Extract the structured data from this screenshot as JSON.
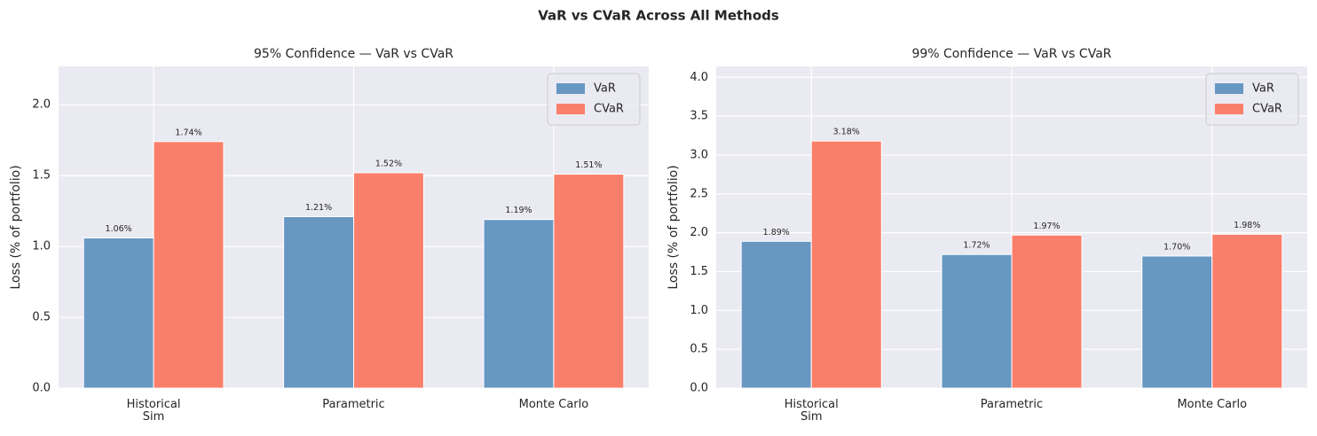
{
  "title": "VaR vs CVaR Across All Methods",
  "chart_data": [
    {
      "type": "bar",
      "title": "95% Confidence — VaR vs CVaR",
      "ylabel": "Loss (% of portfolio)",
      "categories": [
        "Historical\nSim",
        "Parametric",
        "Monte Carlo"
      ],
      "series": [
        {
          "name": "VaR",
          "color": "#6897c2",
          "values": [
            1.06,
            1.21,
            1.19
          ],
          "value_labels": [
            "1.06%",
            "1.21%",
            "1.19%"
          ]
        },
        {
          "name": "CVaR",
          "color": "#fa7f6a",
          "values": [
            1.74,
            1.52,
            1.51
          ],
          "value_labels": [
            "1.74%",
            "1.52%",
            "1.51%"
          ]
        }
      ],
      "ylim": [
        0,
        2.27
      ],
      "yticks": [
        {
          "value": 0,
          "label": "0.0"
        },
        0.5,
        {
          "value": 1,
          "label": "1.0"
        },
        1.5,
        {
          "value": 2,
          "label": "2.0"
        }
      ],
      "grid": true,
      "legend": "upper right"
    },
    {
      "type": "bar",
      "title": "99% Confidence — VaR vs CVaR",
      "ylabel": "Loss (% of portfolio)",
      "categories": [
        "Historical\nSim",
        "Parametric",
        "Monte Carlo"
      ],
      "series": [
        {
          "name": "VaR",
          "color": "#6897c2",
          "values": [
            1.89,
            1.72,
            1.7
          ],
          "value_labels": [
            "1.89%",
            "1.72%",
            "1.70%"
          ]
        },
        {
          "name": "CVaR",
          "color": "#fa7f6a",
          "values": [
            3.18,
            1.97,
            1.98
          ],
          "value_labels": [
            "3.18%",
            "1.97%",
            "1.98%"
          ]
        }
      ],
      "ylim": [
        0,
        4.14
      ],
      "yticks": [
        {
          "value": 0,
          "label": "0.0"
        },
        0.5,
        {
          "value": 1,
          "label": "1.0"
        },
        1.5,
        {
          "value": 2,
          "label": "2.0"
        },
        2.5,
        {
          "value": 3,
          "label": "3.0"
        },
        3.5,
        {
          "value": 4,
          "label": "4.0"
        }
      ],
      "grid": true,
      "legend": "upper right"
    }
  ]
}
